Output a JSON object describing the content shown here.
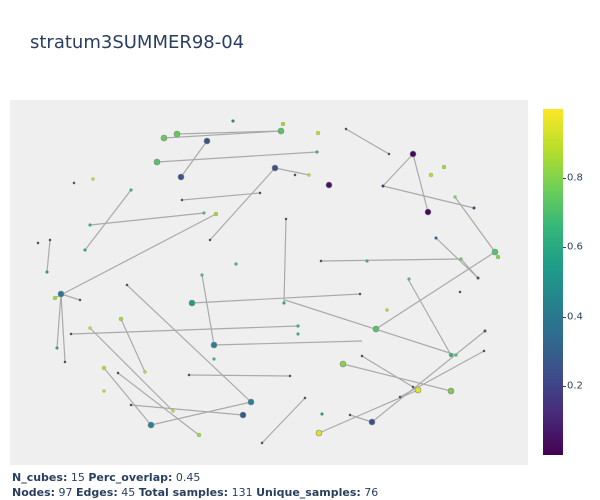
{
  "title": "stratum3SUMMER98-04",
  "colorbar": {
    "ticks": [
      "0.2",
      "0.4",
      "0.6",
      "0.8"
    ],
    "tick_values": [
      0.2,
      0.4,
      0.6,
      0.8
    ],
    "range": [
      0.0,
      1.0
    ],
    "colorscale": "viridis"
  },
  "footer": {
    "line1": [
      {
        "label": "N_cubes:",
        "value": "15"
      },
      {
        "label": "Perc_overlap:",
        "value": "0.45"
      }
    ],
    "line2": [
      {
        "label": "Nodes:",
        "value": "97"
      },
      {
        "label": "Edges:",
        "value": "45"
      },
      {
        "label": "Total samples:",
        "value": "131"
      },
      {
        "label": "Unique_samples:",
        "value": "76"
      }
    ]
  },
  "chart_data": {
    "type": "network",
    "node_count": 97,
    "edge_count": 45,
    "color_range": [
      0.0,
      1.0
    ],
    "grid": false
  },
  "colors": {
    "plot_background": "#efefef",
    "edge": "#aaaaaa",
    "text": "#2a3f5f"
  }
}
